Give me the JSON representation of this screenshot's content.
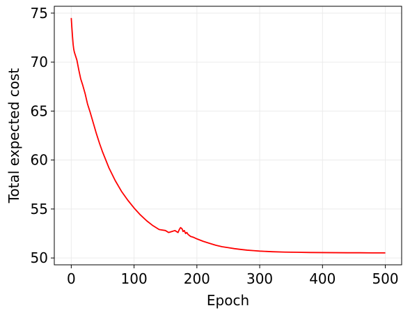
{
  "chart_data": {
    "type": "line",
    "title": "",
    "xlabel": "Epoch",
    "ylabel": "Total expected cost",
    "xlim": [
      -27,
      526
    ],
    "ylim": [
      49.3,
      75.7
    ],
    "xticks": [
      0,
      100,
      200,
      300,
      400,
      500
    ],
    "yticks": [
      50,
      55,
      60,
      65,
      70,
      75
    ],
    "xtick_labels": [
      "0",
      "100",
      "200",
      "300",
      "400",
      "500"
    ],
    "ytick_labels": [
      "50",
      "55",
      "60",
      "65",
      "70",
      "75"
    ],
    "grid": true,
    "legend": "none",
    "series": [
      {
        "color": "#ff0000",
        "x": [
          0,
          1,
          2,
          3,
          4,
          5,
          7,
          9,
          12,
          15,
          18,
          22,
          26,
          30,
          35,
          40,
          45,
          50,
          55,
          60,
          70,
          80,
          90,
          100,
          110,
          120,
          130,
          140,
          150,
          155,
          160,
          165,
          170,
          172,
          174,
          176,
          177,
          178,
          180,
          182,
          184,
          186,
          188,
          190,
          195,
          200,
          210,
          220,
          230,
          240,
          250,
          260,
          270,
          280,
          290,
          300,
          320,
          340,
          360,
          380,
          400,
          420,
          440,
          460,
          480,
          500
        ],
        "y": [
          74.5,
          73.5,
          72.6,
          71.8,
          71.3,
          71.0,
          70.6,
          70.2,
          69.2,
          68.3,
          67.7,
          66.8,
          65.7,
          64.9,
          63.8,
          62.7,
          61.7,
          60.8,
          60.0,
          59.2,
          57.9,
          56.8,
          55.9,
          55.1,
          54.4,
          53.8,
          53.3,
          52.9,
          52.8,
          52.6,
          52.7,
          52.8,
          52.6,
          52.9,
          53.1,
          53.0,
          52.9,
          52.7,
          52.8,
          52.5,
          52.6,
          52.4,
          52.3,
          52.2,
          52.1,
          51.95,
          51.7,
          51.5,
          51.3,
          51.15,
          51.05,
          50.95,
          50.87,
          50.8,
          50.75,
          50.7,
          50.64,
          50.6,
          50.58,
          50.56,
          50.55,
          50.54,
          50.53,
          50.53,
          50.52,
          50.52
        ]
      }
    ]
  }
}
